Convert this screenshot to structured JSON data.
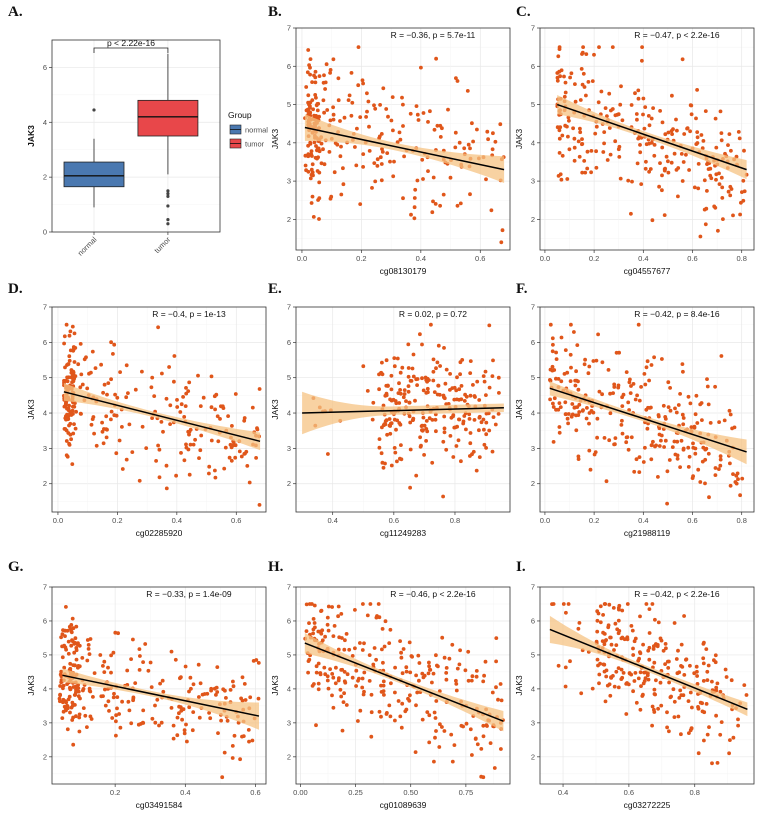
{
  "colors": {
    "normal": "#4a78b0",
    "tumor": "#e8474a",
    "point": "#e0561a",
    "band": "#f5c383",
    "line": "#000000"
  },
  "chart_data": [
    {
      "panel": "A.",
      "type": "boxplot",
      "title": "",
      "ylabel": "JAK3",
      "xlabel": "",
      "categories": [
        "normal",
        "tumor"
      ],
      "ylim": [
        0,
        7
      ],
      "yticks": [
        0,
        2,
        4,
        6
      ],
      "annotation": "p < 2.22e-16",
      "legend": {
        "title": "Group",
        "labels": [
          "normal",
          "tumor"
        ],
        "position": "right"
      },
      "boxes": [
        {
          "name": "normal",
          "min": 0.9,
          "q1": 1.65,
          "median": 2.05,
          "q3": 2.55,
          "max": 3.4,
          "outliers": [
            4.45
          ]
        },
        {
          "name": "tumor",
          "min": 2.1,
          "q1": 3.5,
          "median": 4.2,
          "q3": 4.8,
          "max": 6.5,
          "outliers": [
            1.5,
            1.4,
            1.3,
            0.95,
            0.45,
            0.3
          ]
        }
      ]
    },
    {
      "panel": "B.",
      "type": "scatter",
      "xlabel": "cg08130179",
      "ylabel": "JAK3",
      "stat": "R = −0.36, p = 5.7e-11",
      "xlim": [
        -0.02,
        0.7
      ],
      "ylim": [
        1.2,
        7.0
      ],
      "xticks": [
        0.0,
        0.2,
        0.4,
        0.6
      ],
      "xtick_labels": [
        "0.0",
        "0.2",
        "0.4",
        "0.6"
      ],
      "yticks": [
        2,
        3,
        4,
        5,
        6,
        7
      ],
      "fit": {
        "x0": 0.01,
        "x1": 0.68,
        "y0": 4.4,
        "y1": 3.3,
        "band0": 0.35,
        "bandmid": 0.1,
        "band1": 0.35
      },
      "cluster": {
        "x": [
          0.02,
          0.06
        ],
        "y": [
          3.0,
          5.8
        ]
      },
      "n": 300
    },
    {
      "panel": "C.",
      "type": "scatter",
      "xlabel": "cg04557677",
      "ylabel": "JAK3",
      "stat": "R = −0.47, p < 2.2e-16",
      "xlim": [
        -0.02,
        0.85
      ],
      "ylim": [
        1.2,
        7.0
      ],
      "xticks": [
        0.0,
        0.2,
        0.4,
        0.6,
        0.8
      ],
      "xtick_labels": [
        "0.0",
        "0.2",
        "0.4",
        "0.6",
        "0.8"
      ],
      "yticks": [
        2,
        3,
        4,
        5,
        6,
        7
      ],
      "fit": {
        "x0": 0.05,
        "x1": 0.82,
        "y0": 5.0,
        "y1": 3.3,
        "band0": 0.25,
        "bandmid": 0.08,
        "band1": 0.25
      },
      "n": 280
    },
    {
      "panel": "D.",
      "type": "scatter",
      "xlabel": "cg02285920",
      "ylabel": "JAK3",
      "stat": "R = −0.4, p = 1e-13",
      "xlim": [
        -0.02,
        0.7
      ],
      "ylim": [
        1.2,
        7.0
      ],
      "xticks": [
        0.0,
        0.2,
        0.4,
        0.6
      ],
      "xtick_labels": [
        "0.0",
        "0.2",
        "0.4",
        "0.6"
      ],
      "yticks": [
        2,
        3,
        4,
        5,
        6,
        7
      ],
      "fit": {
        "x0": 0.02,
        "x1": 0.68,
        "y0": 4.6,
        "y1": 3.2,
        "band0": 0.25,
        "bandmid": 0.08,
        "band1": 0.25
      },
      "cluster": {
        "x": [
          0.02,
          0.06
        ],
        "y": [
          3.2,
          5.7
        ]
      },
      "n": 290
    },
    {
      "panel": "E.",
      "type": "scatter",
      "xlabel": "cg11249283",
      "ylabel": "JAK3",
      "stat": "R = 0.02, p = 0.72",
      "xlim": [
        0.28,
        0.98
      ],
      "ylim": [
        1.2,
        7.0
      ],
      "xticks": [
        0.4,
        0.6,
        0.8
      ],
      "xtick_labels": [
        "0.4",
        "0.6",
        "0.8"
      ],
      "yticks": [
        2,
        3,
        4,
        5,
        6,
        7
      ],
      "fit": {
        "x0": 0.3,
        "x1": 0.96,
        "y0": 4.0,
        "y1": 4.15,
        "band0": 0.6,
        "bandmid": 0.12,
        "band1": 0.12
      },
      "xrange": [
        0.55,
        0.96
      ],
      "n": 270
    },
    {
      "panel": "F.",
      "type": "scatter",
      "xlabel": "cg21988119",
      "ylabel": "JAK3",
      "stat": "R = −0.42, p = 8.4e-16",
      "xlim": [
        -0.02,
        0.85
      ],
      "ylim": [
        1.2,
        7.0
      ],
      "xticks": [
        0.0,
        0.2,
        0.4,
        0.6,
        0.8
      ],
      "xtick_labels": [
        "0.0",
        "0.2",
        "0.4",
        "0.6",
        "0.8"
      ],
      "yticks": [
        2,
        3,
        4,
        5,
        6,
        7
      ],
      "fit": {
        "x0": 0.02,
        "x1": 0.82,
        "y0": 4.7,
        "y1": 2.9,
        "band0": 0.2,
        "bandmid": 0.08,
        "band1": 0.35
      },
      "n": 290
    },
    {
      "panel": "G.",
      "type": "scatter",
      "xlabel": "cg03491584",
      "ylabel": "JAK3",
      "stat": "R = −0.33, p = 1.4e-09",
      "xlim": [
        0.02,
        0.63
      ],
      "ylim": [
        1.2,
        7.0
      ],
      "xticks": [
        0.2,
        0.4,
        0.6
      ],
      "xtick_labels": [
        "0.2",
        "0.4",
        "0.6"
      ],
      "yticks": [
        2,
        3,
        4,
        5,
        6,
        7
      ],
      "fit": {
        "x0": 0.05,
        "x1": 0.61,
        "y0": 4.4,
        "y1": 3.2,
        "band0": 0.2,
        "bandmid": 0.08,
        "band1": 0.4
      },
      "cluster": {
        "x": [
          0.04,
          0.1
        ],
        "y": [
          3.0,
          5.8
        ]
      },
      "n": 300
    },
    {
      "panel": "H.",
      "type": "scatter",
      "xlabel": "cg01089639",
      "ylabel": "JAK3",
      "stat": "R = −0.46, p < 2.2e-16",
      "xlim": [
        -0.02,
        0.95
      ],
      "ylim": [
        1.2,
        7.0
      ],
      "xticks": [
        0.0,
        0.25,
        0.5,
        0.75
      ],
      "xtick_labels": [
        "0.00",
        "0.25",
        "0.50",
        "0.75"
      ],
      "yticks": [
        2,
        3,
        4,
        5,
        6,
        7
      ],
      "fit": {
        "x0": 0.02,
        "x1": 0.92,
        "y0": 5.35,
        "y1": 3.05,
        "band0": 0.3,
        "bandmid": 0.08,
        "band1": 0.3
      },
      "n": 290
    },
    {
      "panel": "I.",
      "type": "scatter",
      "xlabel": "cg03272225",
      "ylabel": "JAK3",
      "stat": "R = −0.42, p < 2.2e-16",
      "xlim": [
        0.33,
        0.98
      ],
      "ylim": [
        1.2,
        7.0
      ],
      "xticks": [
        0.4,
        0.6,
        0.8
      ],
      "xtick_labels": [
        "0.4",
        "0.6",
        "0.8"
      ],
      "yticks": [
        2,
        3,
        4,
        5,
        6,
        7
      ],
      "fit": {
        "x0": 0.36,
        "x1": 0.96,
        "y0": 5.75,
        "y1": 3.4,
        "band0": 0.4,
        "bandmid": 0.08,
        "band1": 0.2
      },
      "xrange": [
        0.5,
        0.96
      ],
      "n": 270
    }
  ]
}
